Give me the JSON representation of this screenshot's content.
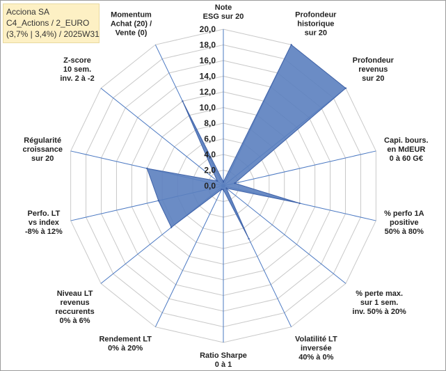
{
  "badge": {
    "line1": "Acciona SA",
    "line2": "C4_Actions / 2_EURO",
    "line3": "(3,7% | 3,4%) / 2025W31"
  },
  "colors": {
    "fill": "#5b7fbf",
    "stroke": "#3f62a8",
    "axis": "#4a78c2",
    "grid": "#c8c8c8",
    "badge_bg": "#fdf0c4"
  },
  "chart_data": {
    "type": "radar",
    "rmax": 20,
    "ticks": [
      "0,0",
      "2,0",
      "4,0",
      "6,0",
      "8,0",
      "10,0",
      "12,0",
      "14,0",
      "16,0",
      "18,0",
      "20,0"
    ],
    "axes": [
      {
        "label": [
          "Note",
          "ESG sur 20"
        ],
        "value": 0.5
      },
      {
        "label": [
          "Profondeur",
          "historique",
          "sur 20"
        ],
        "value": 20
      },
      {
        "label": [
          "Profondeur",
          "revenus",
          "sur 20"
        ],
        "value": 20
      },
      {
        "label": [
          "Capi. bours.",
          "en MdEUR",
          "0 à 60 G€"
        ],
        "value": 1.5
      },
      {
        "label": [
          "% perfo 1A",
          "positive",
          "50% à 80%"
        ],
        "value": 10
      },
      {
        "label": [
          "% perte max.",
          "sur 1 sem.",
          "inv. 50% à 20%"
        ],
        "value": 0.5
      },
      {
        "label": [
          "Volatilité LT",
          "inversée",
          "40% à 0%"
        ],
        "value": 7.5
      },
      {
        "label": [
          "Ratio Sharpe",
          "0 à 1"
        ],
        "value": 0.5
      },
      {
        "label": [
          "Rendement LT",
          "0% à 20%"
        ],
        "value": 0.5
      },
      {
        "label": [
          "Niveau LT",
          "revenus",
          "reccurents",
          "0% à 6%"
        ],
        "value": 8.5
      },
      {
        "label": [
          "Perfo. LT",
          "vs index",
          "-8% à 12%"
        ],
        "value": 8.5
      },
      {
        "label": [
          "Régularité",
          "croissance",
          "sur 20"
        ],
        "value": 10
      },
      {
        "label": [
          "Z-score",
          "10 sem.",
          "inv. 2 à -2"
        ],
        "value": 1
      },
      {
        "label": [
          "Momentum",
          "Achat (20) /",
          "Vente (0)"
        ],
        "value": 12
      }
    ]
  }
}
